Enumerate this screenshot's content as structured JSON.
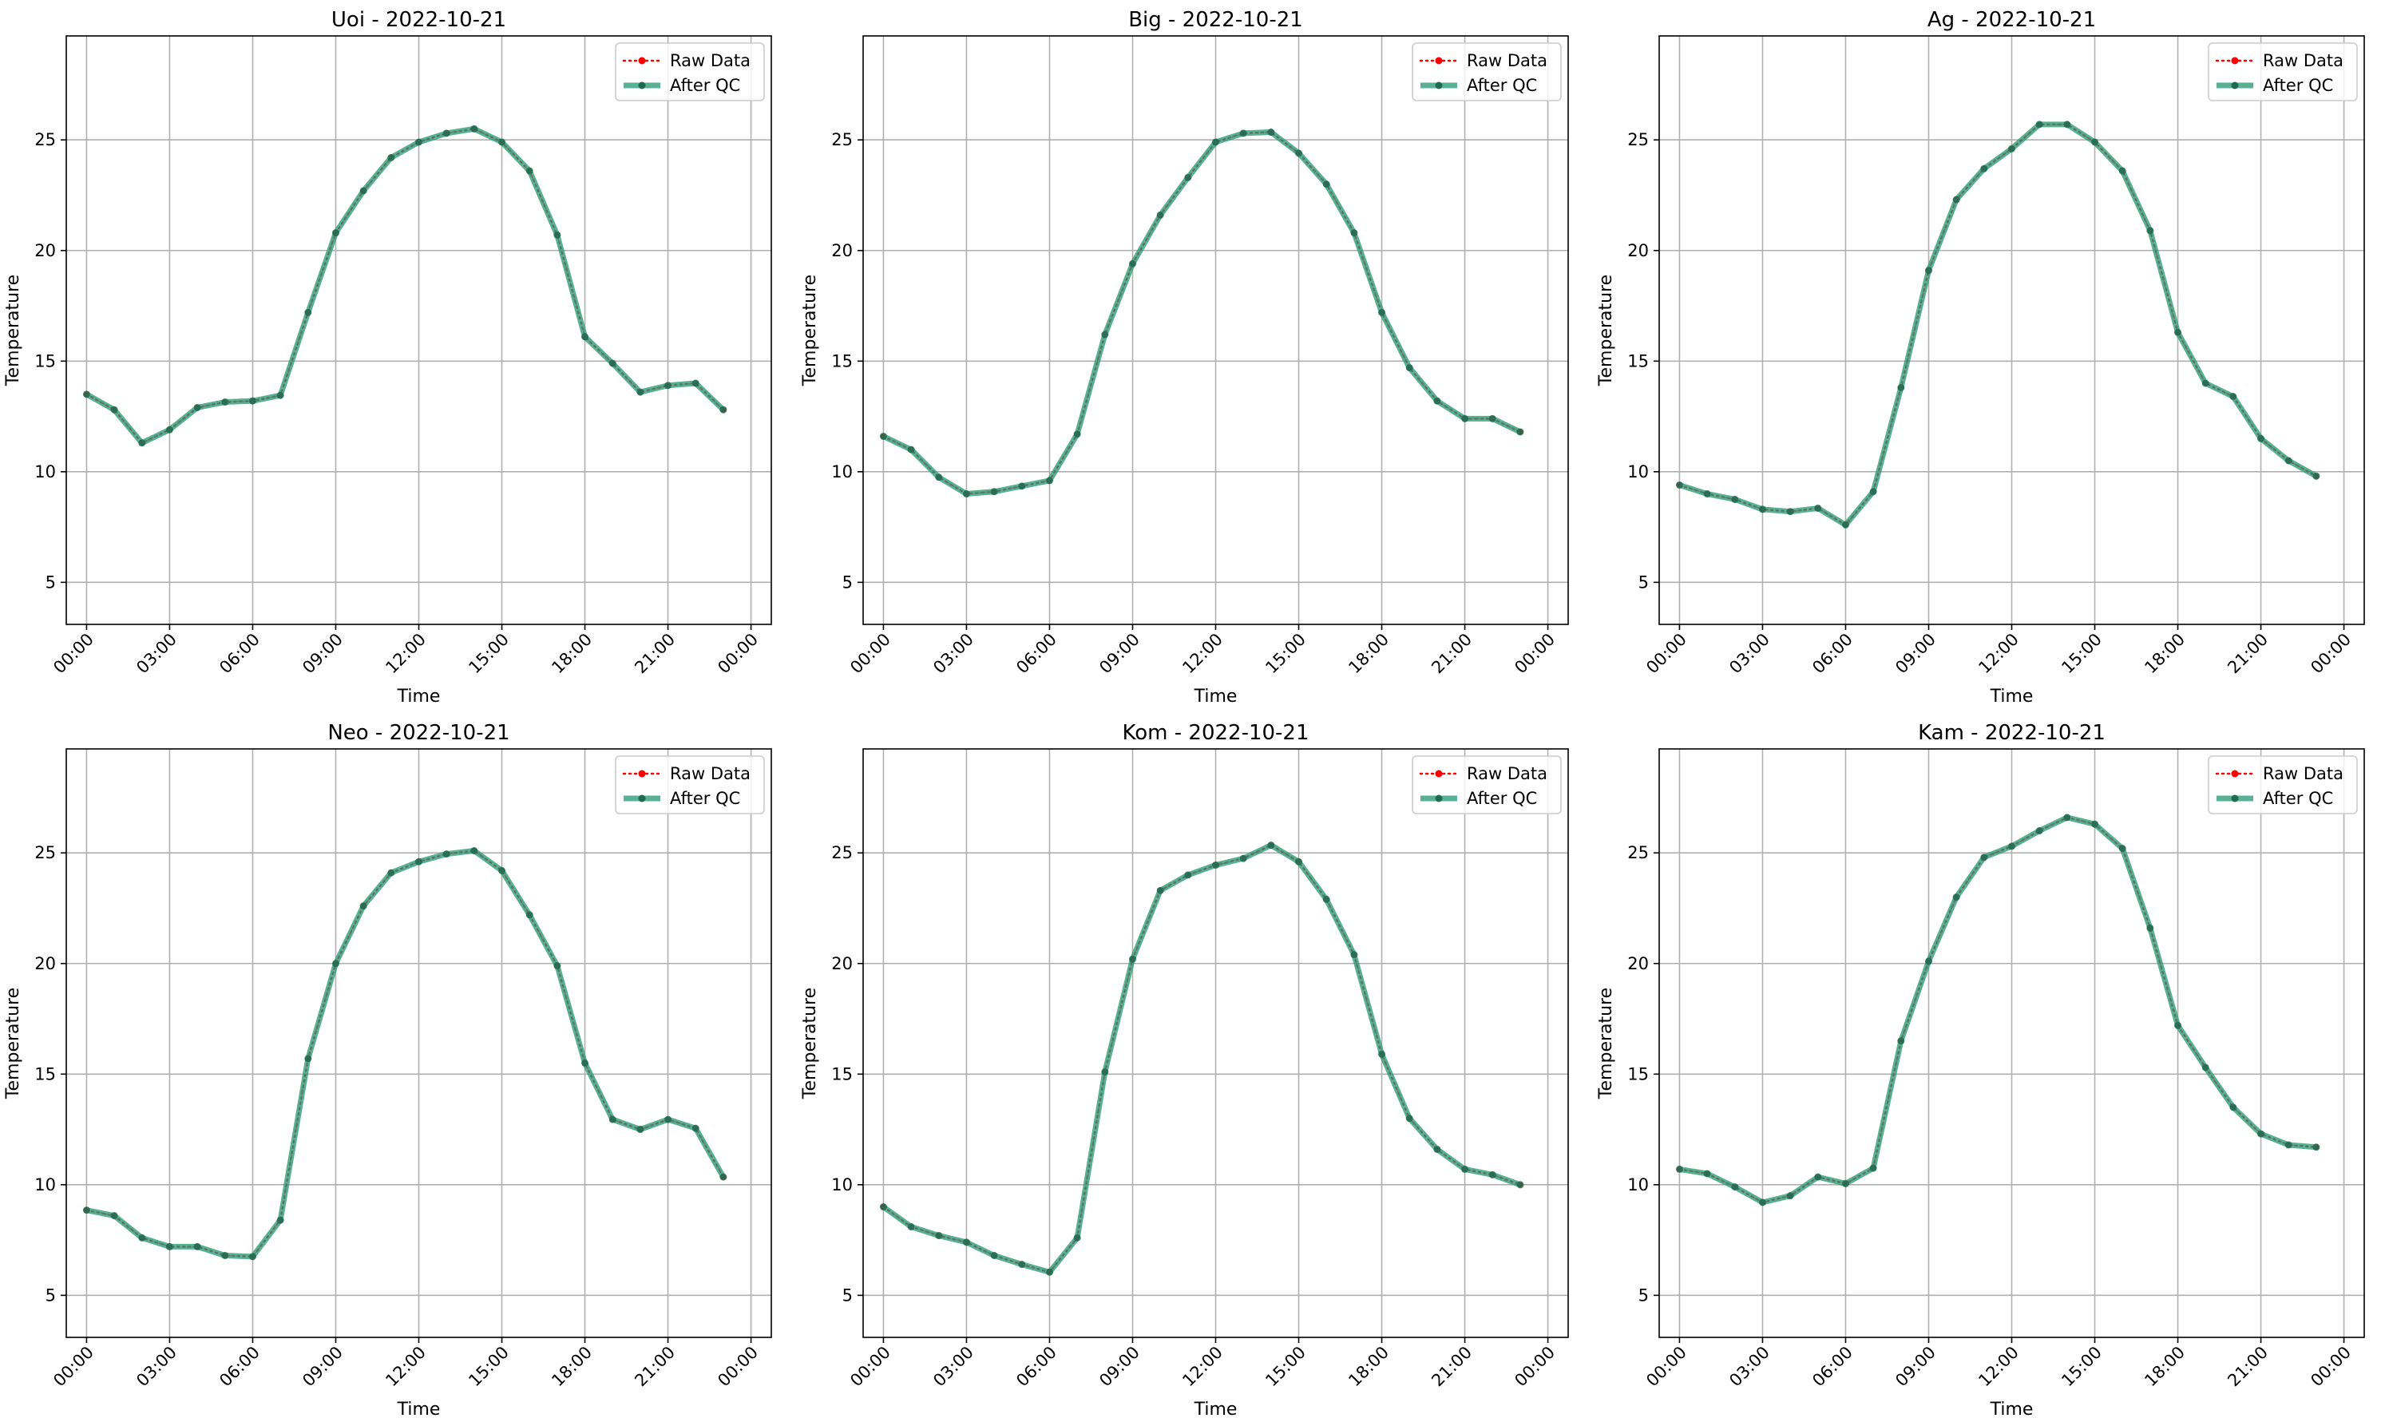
{
  "chart_data": [
    {
      "type": "line",
      "title": "Uoi - 2022-10-21",
      "xlabel": "Time",
      "ylabel": "Temperature",
      "x": [
        "00:00",
        "01:00",
        "02:00",
        "03:00",
        "04:00",
        "05:00",
        "06:00",
        "07:00",
        "08:00",
        "09:00",
        "10:00",
        "11:00",
        "12:00",
        "13:00",
        "14:00",
        "15:00",
        "16:00",
        "17:00",
        "18:00",
        "19:00",
        "20:00",
        "21:00",
        "22:00",
        "23:00"
      ],
      "x_ticks": [
        "00:00",
        "03:00",
        "06:00",
        "09:00",
        "12:00",
        "15:00",
        "18:00",
        "21:00",
        "00:00"
      ],
      "xlim": [
        "23:16",
        "24:44"
      ],
      "ylim": [
        3.1,
        29.7
      ],
      "y_ticks": [
        5,
        10,
        15,
        20,
        25
      ],
      "grid": true,
      "legend_position": "top-right",
      "series": [
        {
          "name": "Raw Data",
          "color": "#ff0000",
          "style": "dotted",
          "values": [
            13.5,
            12.8,
            11.3,
            11.9,
            12.9,
            13.15,
            13.2,
            13.45,
            17.2,
            20.8,
            22.7,
            24.2,
            24.9,
            25.3,
            25.5,
            24.9,
            23.6,
            20.7,
            16.1,
            14.9,
            13.6,
            13.9,
            14.0,
            12.8
          ]
        },
        {
          "name": "After QC",
          "color": "#2e9c7a",
          "style": "solid",
          "values": [
            13.5,
            12.8,
            11.3,
            11.9,
            12.9,
            13.15,
            13.2,
            13.45,
            17.2,
            20.8,
            22.7,
            24.2,
            24.9,
            25.3,
            25.5,
            24.9,
            23.6,
            20.7,
            16.1,
            14.9,
            13.6,
            13.9,
            14.0,
            12.8
          ]
        }
      ]
    },
    {
      "type": "line",
      "title": "Big - 2022-10-21",
      "xlabel": "Time",
      "ylabel": "Temperature",
      "x": [
        "00:00",
        "01:00",
        "02:00",
        "03:00",
        "04:00",
        "05:00",
        "06:00",
        "07:00",
        "08:00",
        "09:00",
        "10:00",
        "11:00",
        "12:00",
        "13:00",
        "14:00",
        "15:00",
        "16:00",
        "17:00",
        "18:00",
        "19:00",
        "20:00",
        "21:00",
        "22:00",
        "23:00"
      ],
      "x_ticks": [
        "00:00",
        "03:00",
        "06:00",
        "09:00",
        "12:00",
        "15:00",
        "18:00",
        "21:00",
        "00:00"
      ],
      "xlim": [
        "23:16",
        "24:44"
      ],
      "ylim": [
        3.1,
        29.7
      ],
      "y_ticks": [
        5,
        10,
        15,
        20,
        25
      ],
      "grid": true,
      "legend_position": "top-right",
      "series": [
        {
          "name": "Raw Data",
          "color": "#ff0000",
          "style": "dotted",
          "values": [
            11.6,
            11.0,
            9.75,
            9.0,
            9.1,
            9.35,
            9.6,
            11.7,
            16.2,
            19.4,
            21.6,
            23.3,
            24.9,
            25.3,
            25.35,
            24.4,
            23.0,
            20.8,
            17.2,
            14.7,
            13.2,
            12.4,
            12.4,
            11.8
          ]
        },
        {
          "name": "After QC",
          "color": "#2e9c7a",
          "style": "solid",
          "values": [
            11.6,
            11.0,
            9.75,
            9.0,
            9.1,
            9.35,
            9.6,
            11.7,
            16.2,
            19.4,
            21.6,
            23.3,
            24.9,
            25.3,
            25.35,
            24.4,
            23.0,
            20.8,
            17.2,
            14.7,
            13.2,
            12.4,
            12.4,
            11.8
          ]
        }
      ]
    },
    {
      "type": "line",
      "title": "Ag - 2022-10-21",
      "xlabel": "Time",
      "ylabel": "Temperature",
      "x": [
        "00:00",
        "01:00",
        "02:00",
        "03:00",
        "04:00",
        "05:00",
        "06:00",
        "07:00",
        "08:00",
        "09:00",
        "10:00",
        "11:00",
        "12:00",
        "13:00",
        "14:00",
        "15:00",
        "16:00",
        "17:00",
        "18:00",
        "19:00",
        "20:00",
        "21:00",
        "22:00",
        "23:00"
      ],
      "x_ticks": [
        "00:00",
        "03:00",
        "06:00",
        "09:00",
        "12:00",
        "15:00",
        "18:00",
        "21:00",
        "00:00"
      ],
      "xlim": [
        "23:16",
        "24:44"
      ],
      "ylim": [
        3.1,
        29.7
      ],
      "y_ticks": [
        5,
        10,
        15,
        20,
        25
      ],
      "grid": true,
      "legend_position": "top-right",
      "series": [
        {
          "name": "Raw Data",
          "color": "#ff0000",
          "style": "dotted",
          "values": [
            9.4,
            9.0,
            8.75,
            8.3,
            8.2,
            8.35,
            7.6,
            9.1,
            13.8,
            19.1,
            22.3,
            23.7,
            24.6,
            25.7,
            25.7,
            24.9,
            23.6,
            20.9,
            16.3,
            14.0,
            13.4,
            11.5,
            10.5,
            9.8
          ]
        },
        {
          "name": "After QC",
          "color": "#2e9c7a",
          "style": "solid",
          "values": [
            9.4,
            9.0,
            8.75,
            8.3,
            8.2,
            8.35,
            7.6,
            9.1,
            13.8,
            19.1,
            22.3,
            23.7,
            24.6,
            25.7,
            25.7,
            24.9,
            23.6,
            20.9,
            16.3,
            14.0,
            13.4,
            11.5,
            10.5,
            9.8
          ]
        }
      ]
    },
    {
      "type": "line",
      "title": "Neo - 2022-10-21",
      "xlabel": "Time",
      "ylabel": "Temperature",
      "x": [
        "00:00",
        "01:00",
        "02:00",
        "03:00",
        "04:00",
        "05:00",
        "06:00",
        "07:00",
        "08:00",
        "09:00",
        "10:00",
        "11:00",
        "12:00",
        "13:00",
        "14:00",
        "15:00",
        "16:00",
        "17:00",
        "18:00",
        "19:00",
        "20:00",
        "21:00",
        "22:00",
        "23:00"
      ],
      "x_ticks": [
        "00:00",
        "03:00",
        "06:00",
        "09:00",
        "12:00",
        "15:00",
        "18:00",
        "21:00",
        "00:00"
      ],
      "xlim": [
        "23:16",
        "24:44"
      ],
      "ylim": [
        3.1,
        29.7
      ],
      "y_ticks": [
        5,
        10,
        15,
        20,
        25
      ],
      "grid": true,
      "legend_position": "top-right",
      "series": [
        {
          "name": "Raw Data",
          "color": "#ff0000",
          "style": "dotted",
          "values": [
            8.85,
            8.6,
            7.6,
            7.2,
            7.2,
            6.8,
            6.75,
            8.4,
            15.7,
            20.0,
            22.6,
            24.1,
            24.6,
            24.95,
            25.1,
            24.2,
            22.2,
            19.9,
            15.5,
            12.95,
            12.5,
            12.95,
            12.55,
            10.35
          ]
        },
        {
          "name": "After QC",
          "color": "#2e9c7a",
          "style": "solid",
          "values": [
            8.85,
            8.6,
            7.6,
            7.2,
            7.2,
            6.8,
            6.75,
            8.4,
            15.7,
            20.0,
            22.6,
            24.1,
            24.6,
            24.95,
            25.1,
            24.2,
            22.2,
            19.9,
            15.5,
            12.95,
            12.5,
            12.95,
            12.55,
            10.35
          ]
        }
      ]
    },
    {
      "type": "line",
      "title": "Kom - 2022-10-21",
      "xlabel": "Time",
      "ylabel": "Temperature",
      "x": [
        "00:00",
        "01:00",
        "02:00",
        "03:00",
        "04:00",
        "05:00",
        "06:00",
        "07:00",
        "08:00",
        "09:00",
        "10:00",
        "11:00",
        "12:00",
        "13:00",
        "14:00",
        "15:00",
        "16:00",
        "17:00",
        "18:00",
        "19:00",
        "20:00",
        "21:00",
        "22:00",
        "23:00"
      ],
      "x_ticks": [
        "00:00",
        "03:00",
        "06:00",
        "09:00",
        "12:00",
        "15:00",
        "18:00",
        "21:00",
        "00:00"
      ],
      "xlim": [
        "23:16",
        "24:44"
      ],
      "ylim": [
        3.1,
        29.7
      ],
      "y_ticks": [
        5,
        10,
        15,
        20,
        25
      ],
      "grid": true,
      "legend_position": "top-right",
      "series": [
        {
          "name": "Raw Data",
          "color": "#ff0000",
          "style": "dotted",
          "values": [
            9.0,
            8.1,
            7.7,
            7.4,
            6.8,
            6.4,
            6.05,
            7.6,
            15.1,
            20.2,
            23.3,
            24.0,
            24.45,
            24.75,
            25.35,
            24.6,
            22.9,
            20.4,
            15.9,
            13.0,
            11.6,
            10.7,
            10.45,
            10.0
          ]
        },
        {
          "name": "After QC",
          "color": "#2e9c7a",
          "style": "solid",
          "values": [
            9.0,
            8.1,
            7.7,
            7.4,
            6.8,
            6.4,
            6.05,
            7.6,
            15.1,
            20.2,
            23.3,
            24.0,
            24.45,
            24.75,
            25.35,
            24.6,
            22.9,
            20.4,
            15.9,
            13.0,
            11.6,
            10.7,
            10.45,
            10.0
          ]
        }
      ]
    },
    {
      "type": "line",
      "title": "Kam - 2022-10-21",
      "xlabel": "Time",
      "ylabel": "Temperature",
      "x": [
        "00:00",
        "01:00",
        "02:00",
        "03:00",
        "04:00",
        "05:00",
        "06:00",
        "07:00",
        "08:00",
        "09:00",
        "10:00",
        "11:00",
        "12:00",
        "13:00",
        "14:00",
        "15:00",
        "16:00",
        "17:00",
        "18:00",
        "19:00",
        "20:00",
        "21:00",
        "22:00",
        "23:00"
      ],
      "x_ticks": [
        "00:00",
        "03:00",
        "06:00",
        "09:00",
        "12:00",
        "15:00",
        "18:00",
        "21:00",
        "00:00"
      ],
      "xlim": [
        "23:16",
        "24:44"
      ],
      "ylim": [
        3.1,
        29.7
      ],
      "y_ticks": [
        5,
        10,
        15,
        20,
        25
      ],
      "grid": true,
      "legend_position": "top-right",
      "series": [
        {
          "name": "Raw Data",
          "color": "#ff0000",
          "style": "dotted",
          "values": [
            10.7,
            10.5,
            9.9,
            9.2,
            9.5,
            10.35,
            10.05,
            10.75,
            16.5,
            20.1,
            23.0,
            24.8,
            25.3,
            26.0,
            26.6,
            26.3,
            25.2,
            21.6,
            17.2,
            15.3,
            13.5,
            12.3,
            11.8,
            11.7
          ]
        },
        {
          "name": "After QC",
          "color": "#2e9c7a",
          "style": "solid",
          "values": [
            10.7,
            10.5,
            9.9,
            9.2,
            9.5,
            10.35,
            10.05,
            10.75,
            16.5,
            20.1,
            23.0,
            24.8,
            25.3,
            26.0,
            26.6,
            26.3,
            25.2,
            21.6,
            17.2,
            15.3,
            13.5,
            12.3,
            11.8,
            11.7
          ]
        }
      ]
    }
  ]
}
